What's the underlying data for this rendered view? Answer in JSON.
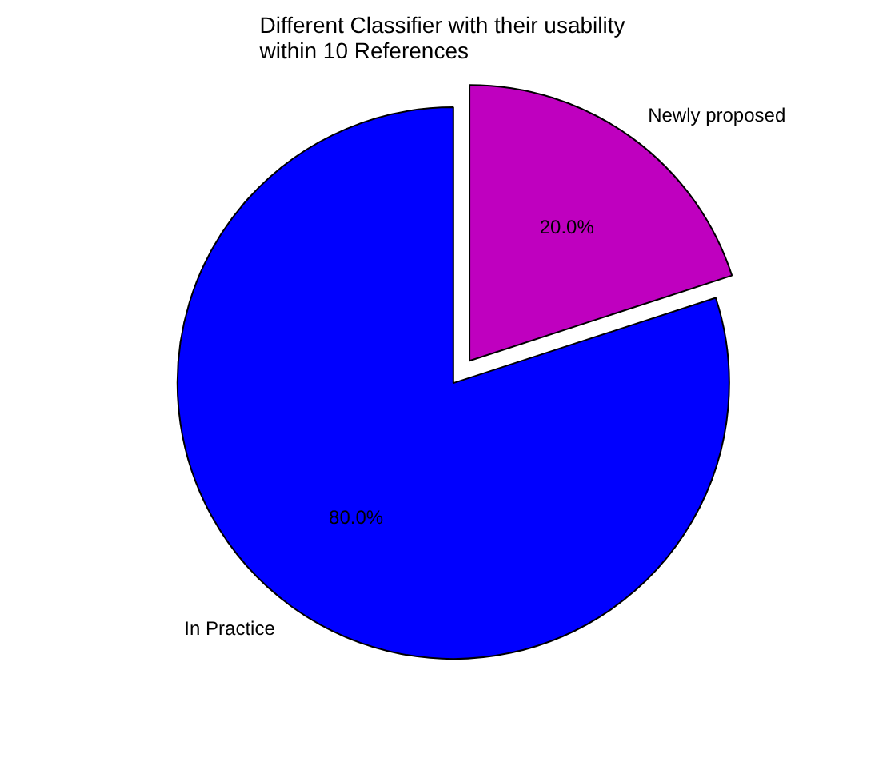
{
  "chart_data": {
    "type": "pie",
    "title": "Different Classifier with their usability\nwithin 10 References",
    "categories": [
      "Newly proposed",
      "In Practice"
    ],
    "values": [
      20,
      80
    ],
    "colors": [
      "#bf00bf",
      "#0000ff"
    ],
    "value_labels": [
      "20.0%",
      "80.0%"
    ]
  }
}
